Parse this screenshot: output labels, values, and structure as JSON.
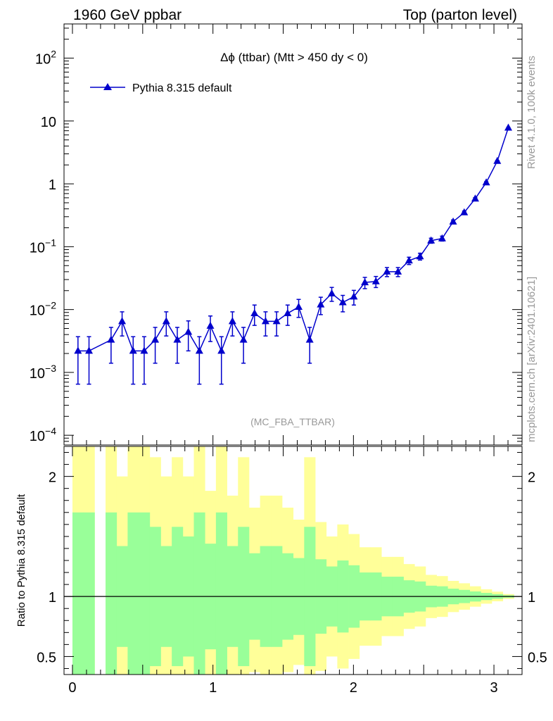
{
  "header": {
    "left": "1960 GeV ppbar",
    "right": "Top (parton level)"
  },
  "side_labels": {
    "rivet": "Rivet 4.1.0,  100k events",
    "source": "mcplots.cern.ch [arXiv:2401.10621]"
  },
  "chart_data": [
    {
      "type": "line",
      "title": "Δϕ (ttbar) (Mtt > 450 dy < 0)",
      "analysis_tag": "(MC_FBA_TTBAR)",
      "ylabel": "",
      "xlabel": "",
      "yscale": "log",
      "ylim": [
        7e-05,
        350
      ],
      "xlim": [
        -0.06,
        3.2
      ],
      "y_ticks": [
        {
          "value": 0.0001,
          "base": "10",
          "exp": "−4"
        },
        {
          "value": 0.001,
          "base": "10",
          "exp": "−3"
        },
        {
          "value": 0.01,
          "base": "10",
          "exp": "−2"
        },
        {
          "value": 0.1,
          "base": "10",
          "exp": "−1"
        },
        {
          "value": 1,
          "base": "1",
          "exp": ""
        },
        {
          "value": 10,
          "base": "10",
          "exp": ""
        },
        {
          "value": 100,
          "base": "10",
          "exp": "2"
        }
      ],
      "legend": [
        {
          "label": "Pythia 8.315 default",
          "color": "#0000cc",
          "marker": "triangle"
        }
      ],
      "series": [
        {
          "name": "Pythia 8.315 default",
          "color": "#0000cc",
          "x": [
            0.0393,
            0.1178,
            0.2749,
            0.3534,
            0.432,
            0.5105,
            0.589,
            0.6676,
            0.7461,
            0.8247,
            0.9032,
            0.9817,
            1.0603,
            1.1388,
            1.2174,
            1.2959,
            1.3744,
            1.453,
            1.5315,
            1.6101,
            1.6886,
            1.7671,
            1.8457,
            1.9242,
            2.0028,
            2.0813,
            2.1598,
            2.2384,
            2.3169,
            2.3955,
            2.474,
            2.5525,
            2.6311,
            2.7096,
            2.7882,
            2.8667,
            2.9452,
            3.0238,
            3.1023
          ],
          "y": [
            0.0022,
            0.0022,
            0.0033,
            0.0065,
            0.0022,
            0.0022,
            0.0033,
            0.0065,
            0.0033,
            0.0044,
            0.0022,
            0.0055,
            0.0022,
            0.0065,
            0.0033,
            0.0087,
            0.0065,
            0.0065,
            0.0087,
            0.011,
            0.0033,
            0.012,
            0.018,
            0.013,
            0.016,
            0.027,
            0.028,
            0.04,
            0.04,
            0.06,
            0.07,
            0.125,
            0.135,
            0.25,
            0.35,
            0.58,
            1.05,
            2.3,
            7.8
          ],
          "yerr_lo": [
            0.00155,
            0.00155,
            0.0019,
            0.0027,
            0.00155,
            0.00155,
            0.0019,
            0.0027,
            0.0019,
            0.0022,
            0.00155,
            0.0024,
            0.00155,
            0.0027,
            0.0019,
            0.0031,
            0.0027,
            0.0027,
            0.0031,
            0.0035,
            0.0019,
            0.0037,
            0.0045,
            0.0038,
            0.0042,
            0.0055,
            0.0056,
            0.0066,
            0.0066,
            0.008,
            0.0087,
            0.0115,
            0.012,
            0.016,
            0.019,
            0.024,
            0.032,
            0.048,
            0.088
          ],
          "yerr_hi": [
            0.0015,
            0.0015,
            0.0019,
            0.0027,
            0.0015,
            0.0015,
            0.0019,
            0.0027,
            0.0019,
            0.0022,
            0.0015,
            0.0024,
            0.0015,
            0.0027,
            0.0019,
            0.0031,
            0.0027,
            0.0027,
            0.0031,
            0.0035,
            0.0019,
            0.0037,
            0.0045,
            0.0038,
            0.0042,
            0.0055,
            0.0056,
            0.0066,
            0.0066,
            0.008,
            0.0087,
            0.0115,
            0.012,
            0.016,
            0.019,
            0.024,
            0.032,
            0.048,
            0.088
          ]
        }
      ]
    },
    {
      "type": "area",
      "title": "",
      "ylabel": "Ratio to Pythia 8.315 default",
      "xlabel": "",
      "ylim": [
        0.35,
        2.25
      ],
      "xlim": [
        -0.06,
        3.2
      ],
      "x_ticks": [
        "0",
        "1",
        "2",
        "3"
      ],
      "y_ticks": [
        "0.5",
        "1",
        "2"
      ],
      "reference_line": 1,
      "bin_edges": [
        0.0,
        0.0785,
        0.1571,
        0.2356,
        0.3142,
        0.3927,
        0.4712,
        0.5498,
        0.6283,
        0.7069,
        0.7854,
        0.8639,
        0.9425,
        1.021,
        1.0996,
        1.1781,
        1.2566,
        1.3352,
        1.4137,
        1.4923,
        1.5708,
        1.6493,
        1.7279,
        1.8064,
        1.885,
        1.9635,
        2.042,
        2.1206,
        2.1991,
        2.2777,
        2.3562,
        2.4347,
        2.5133,
        2.5918,
        2.6704,
        2.7489,
        2.8274,
        2.906,
        2.9845,
        3.0631,
        3.1416
      ],
      "bands": [
        {
          "name": "stat. uncertainty",
          "color": "#99ff99",
          "lo": [
            0.3,
            0.3,
            null,
            0.3,
            0.58,
            0.3,
            0.3,
            0.42,
            0.58,
            0.42,
            0.5,
            0.3,
            0.56,
            0.3,
            0.58,
            0.42,
            0.64,
            0.58,
            0.58,
            0.64,
            0.68,
            0.42,
            0.69,
            0.75,
            0.7,
            0.74,
            0.8,
            0.8,
            0.835,
            0.835,
            0.865,
            0.875,
            0.91,
            0.915,
            0.935,
            0.945,
            0.958,
            0.97,
            0.98,
            0.99
          ],
          "hi": [
            1.7,
            1.7,
            null,
            1.7,
            1.42,
            1.7,
            1.7,
            1.58,
            1.42,
            1.58,
            1.5,
            1.7,
            1.44,
            1.7,
            1.42,
            1.58,
            1.36,
            1.42,
            1.42,
            1.36,
            1.32,
            1.58,
            1.31,
            1.25,
            1.3,
            1.26,
            1.2,
            1.2,
            1.165,
            1.165,
            1.135,
            1.125,
            1.09,
            1.085,
            1.065,
            1.055,
            1.042,
            1.03,
            1.02,
            1.01
          ]
        },
        {
          "name": "total uncertainty",
          "color": "#ffff99",
          "lo": [
            0.3,
            0.3,
            null,
            0.3,
            0.3,
            0.3,
            0.3,
            0.3,
            0.3,
            0.3,
            0.3,
            0.3,
            0.3,
            0.3,
            0.3,
            0.3,
            0.37,
            0.3,
            0.3,
            0.37,
            0.43,
            0.3,
            0.38,
            0.5,
            0.4,
            0.48,
            0.59,
            0.59,
            0.67,
            0.67,
            0.73,
            0.75,
            0.82,
            0.83,
            0.87,
            0.89,
            0.915,
            0.94,
            0.96,
            0.98
          ],
          "hi": [
            2.3,
            2.3,
            null,
            2.3,
            2.0,
            2.3,
            2.3,
            2.16,
            2.0,
            2.16,
            2.0,
            2.3,
            1.88,
            2.3,
            1.84,
            2.16,
            1.74,
            1.84,
            1.84,
            1.74,
            1.64,
            2.16,
            1.62,
            1.5,
            1.6,
            1.52,
            1.41,
            1.41,
            1.33,
            1.33,
            1.27,
            1.25,
            1.18,
            1.17,
            1.13,
            1.11,
            1.085,
            1.06,
            1.04,
            1.02
          ]
        }
      ]
    }
  ]
}
